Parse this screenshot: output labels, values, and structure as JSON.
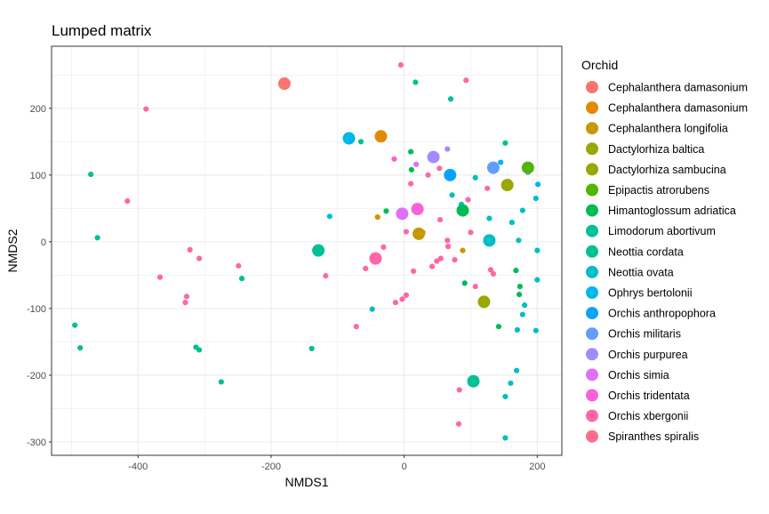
{
  "chart_data": {
    "type": "scatter",
    "title": "Lumped matrix",
    "xlabel": "NMDS1",
    "ylabel": "NMDS2",
    "xlim": [
      -530,
      237
    ],
    "ylim": [
      -320,
      293
    ],
    "x_ticks": [
      -400,
      -200,
      0,
      200
    ],
    "y_ticks": [
      -300,
      -200,
      -100,
      0,
      100,
      200
    ],
    "grid": true,
    "legend_title": "Orchid",
    "legend_position": "right",
    "series": [
      {
        "name": "Cephalanthera damasonium",
        "color": "#F8766D",
        "centroid": [
          -180,
          237
        ],
        "points": [
          [
            108,
            -205
          ]
        ]
      },
      {
        "name": "Cephalanthera damasonium",
        "color": "#E38900",
        "centroid": [
          -35,
          158
        ],
        "points": []
      },
      {
        "name": "Cephalanthera longifolia",
        "color": "#C49A00",
        "centroid": [
          22,
          12
        ],
        "points": [
          [
            -40,
            37
          ],
          [
            88,
            -13
          ]
        ]
      },
      {
        "name": "Dactylorhiza baltica",
        "color": "#99A800",
        "centroid": [
          155,
          85
        ],
        "points": []
      },
      {
        "name": "Dactylorhiza sambucina",
        "color": "#99A800",
        "centroid": [
          120,
          -90
        ],
        "points": []
      },
      {
        "name": "Epipactis atrorubens",
        "color": "#53B400",
        "centroid": [
          186,
          111
        ],
        "points": []
      },
      {
        "name": "Himantoglossum adriatica",
        "color": "#00BC56",
        "centroid": [
          88,
          47
        ],
        "points": [
          [
            10,
            135
          ],
          [
            11,
            108
          ],
          [
            -27,
            46
          ],
          [
            168,
            -43
          ],
          [
            174,
            -67
          ],
          [
            173,
            -79
          ],
          [
            91,
            -62
          ],
          [
            142,
            -127
          ]
        ]
      },
      {
        "name": "Limodorum abortivum",
        "color": "#00C094",
        "centroid": [
          -129,
          -13
        ],
        "points": [
          [
            -471,
            101
          ],
          [
            -461,
            6
          ],
          [
            -495,
            -125
          ],
          [
            -487,
            -159
          ],
          [
            -313,
            -158
          ],
          [
            -308,
            -162
          ],
          [
            -275,
            -210
          ],
          [
            -244,
            -55
          ],
          [
            -139,
            -160
          ],
          [
            -65,
            150
          ],
          [
            17,
            239
          ],
          [
            70,
            214
          ],
          [
            152,
            148
          ],
          [
            104,
            -210
          ]
        ]
      },
      {
        "name": "Neottia cordata",
        "color": "#00C094",
        "centroid": [
          104,
          -209
        ],
        "points": []
      },
      {
        "name": "Neottia ovata",
        "color": "#00BFC4",
        "centroid": [
          128,
          2
        ],
        "points": [
          [
            -112,
            38
          ],
          [
            -48,
            -101
          ],
          [
            72,
            70
          ],
          [
            86,
            56
          ],
          [
            107,
            96
          ],
          [
            128,
            35
          ],
          [
            162,
            29
          ],
          [
            178,
            47
          ],
          [
            172,
            2
          ],
          [
            198,
            65
          ],
          [
            200,
            -13
          ],
          [
            200,
            -57
          ],
          [
            181,
            -95
          ],
          [
            178,
            -109
          ],
          [
            170,
            -132
          ],
          [
            198,
            -133
          ],
          [
            169,
            -193
          ],
          [
            160,
            -212
          ],
          [
            152,
            -232
          ],
          [
            152,
            -294
          ]
        ]
      },
      {
        "name": "Ophrys bertolonii",
        "color": "#00B6EB",
        "centroid": [
          -83,
          155
        ],
        "points": [
          [
            201,
            86
          ],
          [
            145,
            119
          ]
        ]
      },
      {
        "name": "Orchis anthropophora",
        "color": "#06A4FF",
        "centroid": [
          69,
          100
        ],
        "points": [
          [
            133,
            112
          ]
        ]
      },
      {
        "name": "Orchis militaris",
        "color": "#619CFF",
        "centroid": [
          134,
          111
        ],
        "points": [
          [
            157,
            90
          ],
          [
            186,
            104
          ]
        ]
      },
      {
        "name": "Orchis purpurea",
        "color": "#A58AFF",
        "centroid": [
          44,
          127
        ],
        "points": [
          [
            65,
            139
          ]
        ]
      },
      {
        "name": "Orchis simia",
        "color": "#DF70F8",
        "centroid": [
          -3,
          42
        ],
        "points": [
          [
            18,
            116
          ]
        ]
      },
      {
        "name": "Orchis tridentata",
        "color": "#FB61D7",
        "centroid": [
          20,
          49
        ],
        "points": [
          [
            -15,
            124
          ]
        ]
      },
      {
        "name": "Orchis xbergonii",
        "color": "#FF66A8",
        "centroid": [
          -43,
          -25
        ],
        "points": [
          [
            -5,
            265
          ],
          [
            93,
            242
          ],
          [
            -388,
            199
          ],
          [
            -416,
            61
          ],
          [
            -367,
            -53
          ],
          [
            -322,
            -12
          ],
          [
            -308,
            -25
          ],
          [
            -327,
            -82
          ],
          [
            -329,
            -91
          ],
          [
            -249,
            -36
          ],
          [
            -118,
            -51
          ],
          [
            -72,
            -127
          ],
          [
            -58,
            -40
          ],
          [
            -31,
            -8
          ],
          [
            3,
            15
          ],
          [
            -3,
            -86
          ],
          [
            -13,
            -91
          ],
          [
            3,
            -80
          ],
          [
            10,
            87
          ],
          [
            14,
            -44
          ],
          [
            28,
            14
          ],
          [
            36,
            100
          ],
          [
            42,
            -37
          ],
          [
            49,
            -29
          ],
          [
            55,
            -25
          ],
          [
            54,
            33
          ],
          [
            53,
            110
          ],
          [
            65,
            2
          ],
          [
            66,
            -7
          ],
          [
            76,
            -27
          ],
          [
            100,
            14
          ],
          [
            96,
            63
          ],
          [
            107,
            -67
          ],
          [
            125,
            80
          ],
          [
            130,
            -42
          ],
          [
            134,
            -48
          ],
          [
            83,
            -222
          ],
          [
            82,
            -273
          ]
        ]
      },
      {
        "name": "Spiranthes spiralis",
        "color": "#FF6C91",
        "centroid": null,
        "points": []
      }
    ]
  }
}
